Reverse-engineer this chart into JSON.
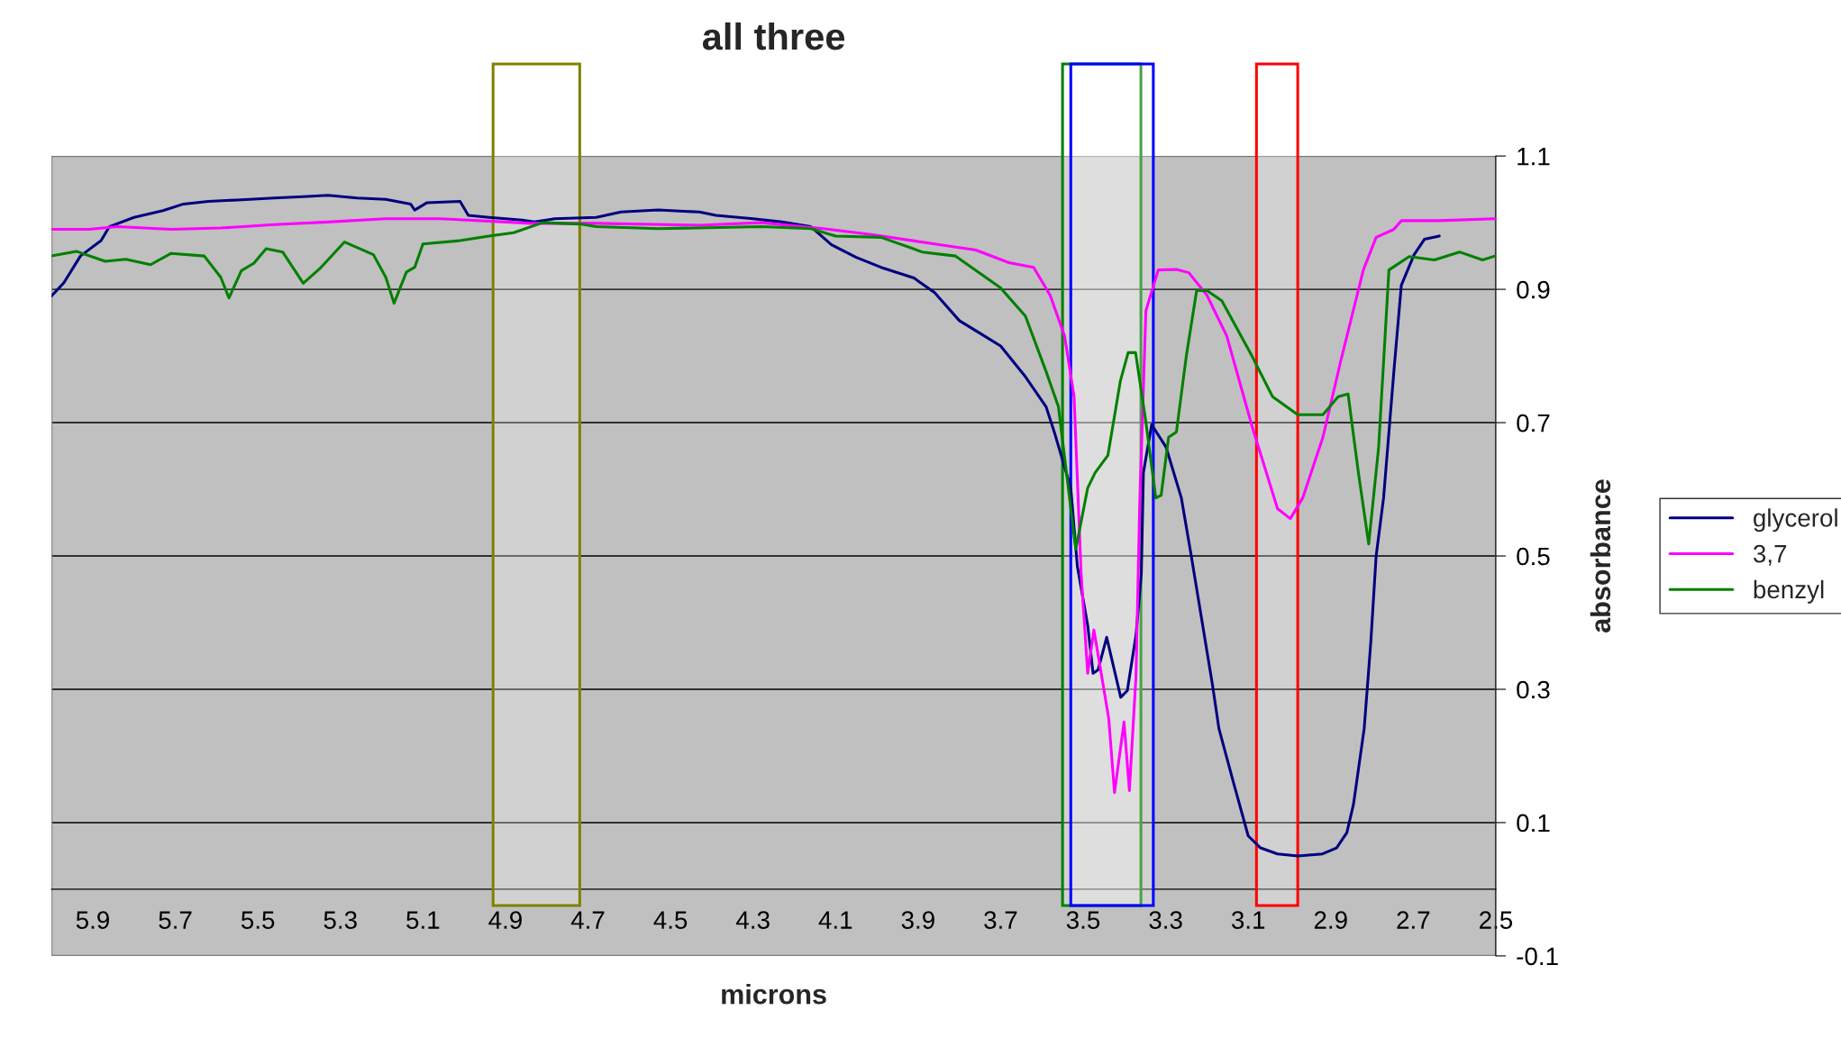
{
  "chart_data": {
    "type": "line",
    "title": "all three",
    "xlabel": "microns",
    "ylabel": "absorbance",
    "xlim": [
      6.0,
      2.5
    ],
    "xticks": [
      5.9,
      5.7,
      5.5,
      5.3,
      5.1,
      4.9,
      4.7,
      4.5,
      4.3,
      4.1,
      3.9,
      3.7,
      3.5,
      3.3,
      3.1,
      2.9,
      2.7,
      2.5
    ],
    "ylim": [
      -0.1,
      1.1
    ],
    "yticks": [
      -0.1,
      0.1,
      0.3,
      0.5,
      0.7,
      0.9,
      1.1
    ],
    "grid": "y",
    "legend": "right",
    "line_style": "solid",
    "marker": "none",
    "bands": [
      {
        "axis": "x",
        "from": 4.93,
        "to": 4.72,
        "color": "#808000"
      },
      {
        "axis": "x",
        "from": 3.55,
        "to": 3.36,
        "color": "#008000"
      },
      {
        "axis": "x",
        "from": 3.53,
        "to": 3.33,
        "color": "#0000ff"
      },
      {
        "axis": "x",
        "from": 3.08,
        "to": 2.98,
        "color": "#ff0000"
      }
    ],
    "series": [
      {
        "name": "glycerol",
        "color": "#000080",
        "x": [
          6.0,
          5.97,
          5.93,
          5.88,
          5.86,
          5.8,
          5.73,
          5.68,
          5.62,
          5.55,
          5.46,
          5.39,
          5.33,
          5.26,
          5.19,
          5.13,
          5.12,
          5.09,
          5.01,
          4.99,
          4.94,
          4.86,
          4.83,
          4.78,
          4.68,
          4.62,
          4.53,
          4.43,
          4.39,
          4.3,
          4.23,
          4.16,
          4.11,
          4.05,
          3.99,
          3.91,
          3.86,
          3.8,
          3.75,
          3.7,
          3.64,
          3.59,
          3.57,
          3.53,
          3.514,
          3.489,
          3.476,
          3.464,
          3.443,
          3.409,
          3.393,
          3.372,
          3.359,
          3.354,
          3.334,
          3.299,
          3.262,
          3.238,
          3.187,
          3.171,
          3.137,
          3.1,
          3.07,
          3.029,
          2.979,
          2.92,
          2.886,
          2.861,
          2.845,
          2.819,
          2.803,
          2.79,
          2.772,
          2.747,
          2.729,
          2.698,
          2.673,
          2.637
        ],
        "values": [
          0.89,
          0.91,
          0.95,
          0.973,
          0.994,
          1.008,
          1.018,
          1.028,
          1.032,
          1.034,
          1.037,
          1.039,
          1.041,
          1.037,
          1.035,
          1.028,
          1.019,
          1.03,
          1.032,
          1.011,
          1.008,
          1.004,
          1.001,
          1.006,
          1.008,
          1.016,
          1.019,
          1.016,
          1.011,
          1.006,
          1.001,
          0.994,
          0.967,
          0.948,
          0.933,
          0.917,
          0.895,
          0.853,
          0.834,
          0.815,
          0.769,
          0.724,
          0.686,
          0.602,
          0.484,
          0.396,
          0.324,
          0.329,
          0.378,
          0.288,
          0.298,
          0.381,
          0.474,
          0.625,
          0.697,
          0.663,
          0.587,
          0.5,
          0.308,
          0.241,
          0.163,
          0.08,
          0.062,
          0.053,
          0.05,
          0.053,
          0.062,
          0.085,
          0.127,
          0.241,
          0.37,
          0.5,
          0.587,
          0.777,
          0.906,
          0.952,
          0.975,
          0.98
        ]
      },
      {
        "name": "3,7",
        "color": "#ff00ff",
        "x": [
          6.0,
          5.91,
          5.84,
          5.71,
          5.59,
          5.46,
          5.33,
          5.19,
          5.06,
          4.93,
          4.84,
          4.68,
          4.43,
          4.28,
          4.13,
          4.01,
          3.86,
          3.76,
          3.68,
          3.62,
          3.58,
          3.545,
          3.522,
          3.505,
          3.489,
          3.474,
          3.459,
          3.438,
          3.424,
          3.401,
          3.388,
          3.372,
          3.363,
          3.348,
          3.318,
          3.274,
          3.244,
          3.2,
          3.152,
          3.09,
          3.029,
          2.998,
          2.968,
          2.919,
          2.876,
          2.821,
          2.79,
          2.747,
          2.729,
          2.637,
          2.502
        ],
        "values": [
          0.99,
          0.99,
          0.994,
          0.99,
          0.992,
          0.997,
          1.001,
          1.006,
          1.006,
          1.002,
          0.999,
          0.999,
          0.996,
          1.0,
          0.991,
          0.982,
          0.968,
          0.959,
          0.94,
          0.933,
          0.891,
          0.83,
          0.739,
          0.474,
          0.324,
          0.389,
          0.334,
          0.256,
          0.145,
          0.251,
          0.148,
          0.319,
          0.578,
          0.868,
          0.929,
          0.93,
          0.925,
          0.891,
          0.83,
          0.693,
          0.571,
          0.556,
          0.587,
          0.678,
          0.792,
          0.929,
          0.978,
          0.99,
          1.003,
          1.003,
          1.006
        ]
      },
      {
        "name": "benzyl",
        "color": "#008000",
        "x": [
          6.0,
          5.94,
          5.87,
          5.82,
          5.76,
          5.71,
          5.63,
          5.59,
          5.57,
          5.54,
          5.51,
          5.48,
          5.44,
          5.39,
          5.35,
          5.29,
          5.22,
          5.19,
          5.17,
          5.14,
          5.12,
          5.1,
          5.01,
          4.94,
          4.88,
          4.81,
          4.72,
          4.68,
          4.53,
          4.28,
          4.16,
          4.1,
          3.99,
          3.89,
          3.81,
          3.7,
          3.64,
          3.59,
          3.56,
          3.545,
          3.518,
          3.489,
          3.471,
          3.44,
          3.41,
          3.391,
          3.373,
          3.348,
          3.324,
          3.311,
          3.293,
          3.274,
          3.25,
          3.225,
          3.2,
          3.164,
          3.091,
          3.041,
          2.98,
          2.919,
          2.882,
          2.858,
          2.833,
          2.808,
          2.784,
          2.759,
          2.71,
          2.649,
          2.588,
          2.532,
          2.502
        ],
        "values": [
          0.95,
          0.957,
          0.942,
          0.945,
          0.937,
          0.954,
          0.95,
          0.918,
          0.887,
          0.928,
          0.939,
          0.961,
          0.956,
          0.909,
          0.931,
          0.971,
          0.952,
          0.918,
          0.879,
          0.926,
          0.933,
          0.968,
          0.973,
          0.98,
          0.985,
          1.0,
          0.998,
          0.994,
          0.991,
          0.994,
          0.991,
          0.98,
          0.978,
          0.956,
          0.95,
          0.902,
          0.86,
          0.777,
          0.724,
          0.648,
          0.51,
          0.602,
          0.625,
          0.651,
          0.762,
          0.805,
          0.805,
          0.701,
          0.587,
          0.591,
          0.678,
          0.686,
          0.8,
          0.898,
          0.898,
          0.883,
          0.8,
          0.739,
          0.712,
          0.712,
          0.739,
          0.743,
          0.625,
          0.518,
          0.663,
          0.929,
          0.949,
          0.944,
          0.956,
          0.944,
          0.95
        ]
      }
    ]
  }
}
